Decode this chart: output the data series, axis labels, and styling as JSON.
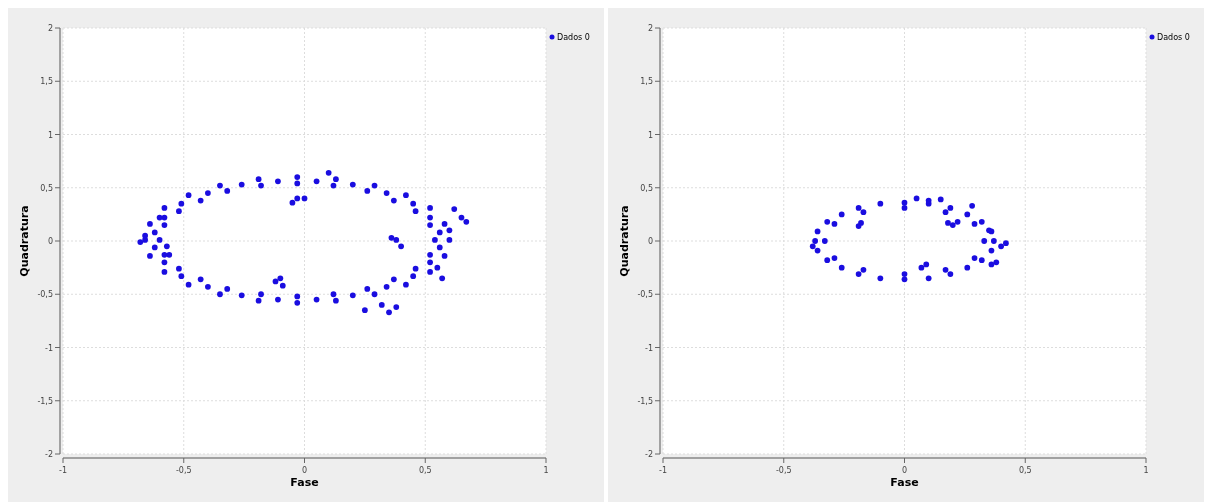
{
  "chart_data": [
    {
      "type": "scatter",
      "xlabel": "Fase",
      "ylabel": "Quadratura",
      "legend": "top right",
      "grid": true,
      "marker": "circle",
      "xlim": [
        -1,
        1
      ],
      "ylim": [
        -2,
        2
      ],
      "xticks": [
        {
          "value": -1,
          "label": "-1"
        },
        {
          "value": -0.5,
          "label": "-0,5"
        },
        {
          "value": 0,
          "label": "0"
        },
        {
          "value": 0.5,
          "label": "0,5"
        },
        {
          "value": 1,
          "label": "1"
        }
      ],
      "yticks": [
        {
          "value": -2,
          "label": "-2"
        },
        {
          "value": -1.5,
          "label": "-1,5"
        },
        {
          "value": -1,
          "label": "-1"
        },
        {
          "value": -0.5,
          "label": "-0,5"
        },
        {
          "value": 0,
          "label": "0"
        },
        {
          "value": 0.5,
          "label": "0,5"
        },
        {
          "value": 1,
          "label": "1"
        },
        {
          "value": 1.5,
          "label": "1,5"
        },
        {
          "value": 2,
          "label": "2"
        }
      ],
      "series": [
        {
          "name": "Dados 0",
          "color": "#1a0de0",
          "x": [
            0.6,
            0.58,
            0.52,
            0.42,
            0.29,
            0.13,
            -0.03,
            -0.19,
            -0.35,
            -0.48,
            -0.58,
            -0.64,
            -0.66,
            -0.64,
            -0.58,
            -0.48,
            -0.35,
            -0.19,
            -0.03,
            0.13,
            0.29,
            0.42,
            0.52,
            0.58,
            0.54,
            0.52,
            0.46,
            0.37,
            0.26,
            0.12,
            -0.03,
            -0.18,
            -0.32,
            -0.43,
            -0.52,
            -0.58,
            -0.6,
            -0.58,
            -0.52,
            -0.43,
            -0.32,
            -0.18,
            -0.03,
            0.12,
            0.26,
            0.37,
            0.46,
            0.52,
            0.56,
            0.52,
            0.45,
            0.34,
            0.2,
            0.05,
            -0.11,
            -0.26,
            -0.4,
            -0.51,
            -0.58,
            -0.62,
            -0.62,
            -0.58,
            -0.51,
            -0.4,
            -0.26,
            -0.11,
            0.05,
            0.2,
            0.34,
            0.45,
            0.52,
            0.56,
            0.65,
            0.67,
            0.62,
            0.6,
            0.38,
            0.4,
            0.36,
            -0.12,
            -0.1,
            -0.09,
            -0.05,
            -0.03,
            0.0,
            0.25,
            0.35,
            0.38,
            0.32,
            0.1,
            -0.66,
            -0.68,
            0.55,
            0.57,
            -0.6,
            -0.57,
            -0.56
          ],
          "values": [
            0.01,
            0.16,
            0.31,
            0.43,
            0.52,
            0.58,
            0.6,
            0.58,
            0.52,
            0.43,
            0.31,
            0.16,
            0.01,
            -0.14,
            -0.29,
            -0.41,
            -0.5,
            -0.56,
            -0.58,
            -0.56,
            -0.5,
            -0.41,
            -0.29,
            -0.14,
            0.01,
            0.15,
            0.28,
            0.38,
            0.47,
            0.52,
            0.54,
            0.52,
            0.47,
            0.38,
            0.28,
            0.15,
            0.01,
            -0.13,
            -0.26,
            -0.36,
            -0.45,
            -0.5,
            -0.52,
            -0.5,
            -0.45,
            -0.36,
            -0.26,
            -0.13,
            0.08,
            0.22,
            0.35,
            0.45,
            0.53,
            0.56,
            0.56,
            0.53,
            0.45,
            0.35,
            0.22,
            0.08,
            -0.06,
            -0.2,
            -0.33,
            -0.43,
            -0.51,
            -0.55,
            -0.55,
            -0.51,
            -0.43,
            -0.33,
            -0.2,
            -0.06,
            0.22,
            0.18,
            0.3,
            0.1,
            0.01,
            -0.05,
            0.03,
            -0.38,
            -0.35,
            -0.42,
            0.36,
            0.4,
            0.4,
            -0.65,
            -0.67,
            -0.62,
            -0.6,
            0.64,
            0.05,
            -0.01,
            -0.25,
            -0.35,
            0.22,
            -0.05,
            -0.13
          ]
        }
      ]
    },
    {
      "type": "scatter",
      "xlabel": "Fase",
      "ylabel": "Quadratura",
      "legend": "top right",
      "grid": true,
      "marker": "circle",
      "xlim": [
        -1,
        1
      ],
      "ylim": [
        -2,
        2
      ],
      "xticks": [
        {
          "value": -1,
          "label": "-1"
        },
        {
          "value": -0.5,
          "label": "-0,5"
        },
        {
          "value": 0,
          "label": "0"
        },
        {
          "value": 0.5,
          "label": "0,5"
        },
        {
          "value": 1,
          "label": "1"
        }
      ],
      "yticks": [
        {
          "value": -2,
          "label": "-2"
        },
        {
          "value": -1.5,
          "label": "-1,5"
        },
        {
          "value": -1,
          "label": "-1"
        },
        {
          "value": -0.5,
          "label": "-0,5"
        },
        {
          "value": 0,
          "label": "0"
        },
        {
          "value": 0.5,
          "label": "0,5"
        },
        {
          "value": 1,
          "label": "1"
        },
        {
          "value": 1.5,
          "label": "1,5"
        },
        {
          "value": 2,
          "label": "2"
        }
      ],
      "series": [
        {
          "name": "Dados 0",
          "color": "#1a0de0",
          "x": [
            0.37,
            0.36,
            0.32,
            0.26,
            0.19,
            0.1,
            0,
            -0.1,
            -0.19,
            -0.26,
            -0.32,
            -0.36,
            -0.37,
            -0.36,
            -0.32,
            -0.26,
            -0.19,
            -0.1,
            0,
            0.1,
            0.19,
            0.26,
            0.32,
            0.36,
            0.33,
            0.29,
            0.17,
            0,
            -0.17,
            -0.29,
            -0.33,
            -0.29,
            -0.17,
            0,
            0.17,
            0.29,
            0.38,
            0.36,
            0.42,
            0.4,
            0.2,
            0.22,
            0.18,
            -0.18,
            -0.19,
            0.1,
            0.05,
            0.15,
            0.28,
            0.09,
            0.07,
            -0.38,
            0.35
          ],
          "values": [
            0,
            0.09,
            0.18,
            0.25,
            0.31,
            0.35,
            0.36,
            0.35,
            0.31,
            0.25,
            0.18,
            0.09,
            0,
            -0.09,
            -0.18,
            -0.25,
            -0.31,
            -0.35,
            -0.36,
            -0.35,
            -0.31,
            -0.25,
            -0.18,
            -0.09,
            0,
            0.16,
            0.27,
            0.31,
            0.27,
            0.16,
            0,
            -0.16,
            -0.27,
            -0.31,
            -0.27,
            -0.16,
            -0.2,
            -0.22,
            -0.02,
            -0.05,
            0.15,
            0.18,
            0.17,
            0.17,
            0.14,
            0.38,
            0.4,
            0.39,
            0.33,
            -0.22,
            -0.25,
            -0.05,
            0.1
          ]
        }
      ]
    }
  ]
}
